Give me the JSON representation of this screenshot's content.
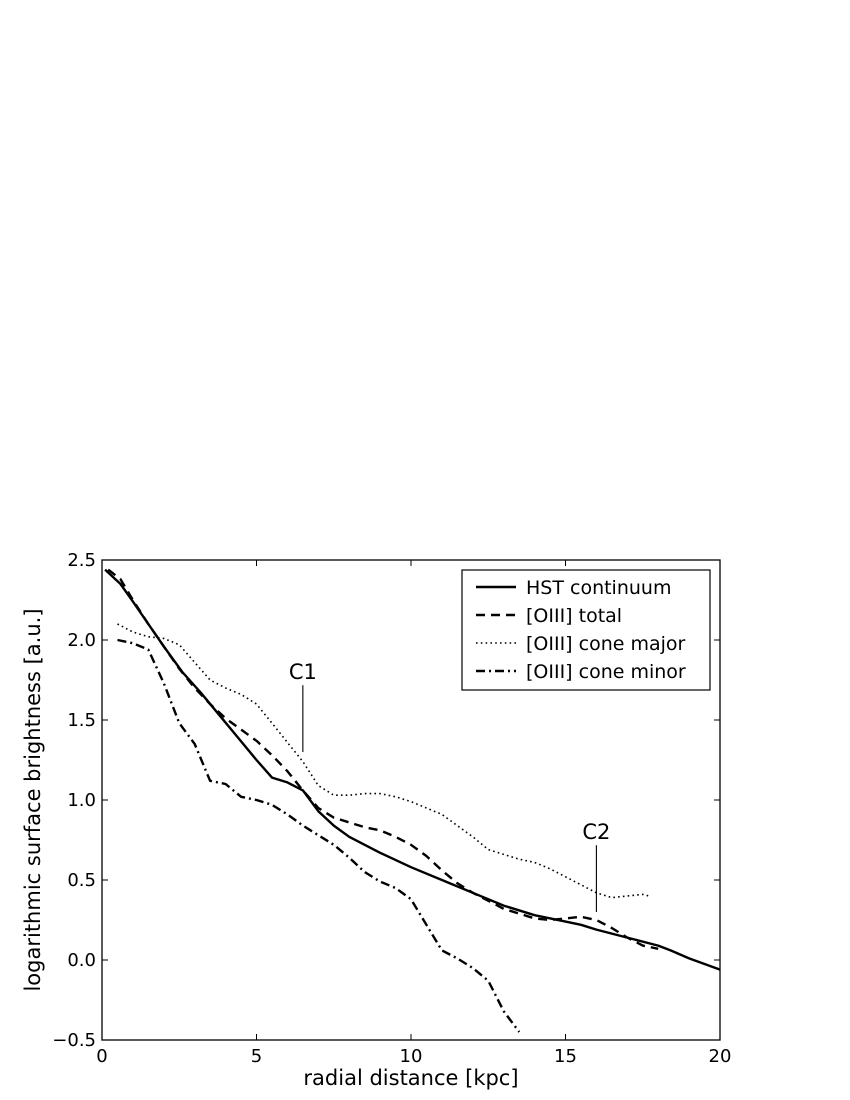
{
  "chart_data": {
    "type": "line",
    "title": "",
    "xlabel": "radial distance [kpc]",
    "ylabel": "logarithmic surface brightness [a.u.]",
    "xlim": [
      0,
      20
    ],
    "ylim": [
      -0.5,
      2.5
    ],
    "xticks": [
      0,
      5,
      10,
      15,
      20
    ],
    "xtick_labels": [
      "0",
      "5",
      "10",
      "15",
      "20"
    ],
    "yticks": [
      -0.5,
      0.0,
      0.5,
      1.0,
      1.5,
      2.0,
      2.5
    ],
    "ytick_labels": [
      "−0.5",
      "0.0",
      "0.5",
      "1.0",
      "1.5",
      "2.0",
      "2.5"
    ],
    "grid": false,
    "legend_position": "top-right",
    "series": [
      {
        "name": "HST continuum",
        "style": "solid",
        "x": [
          0.1,
          0.6,
          1.0,
          1.5,
          2.0,
          2.6,
          3.2,
          3.8,
          4.4,
          5.0,
          5.5,
          6.0,
          6.5,
          7.0,
          7.5,
          8.0,
          9.0,
          10.0,
          11.0,
          12.0,
          13.0,
          14.0,
          15.0,
          15.5,
          16.0,
          17.0,
          18.0,
          18.4,
          19.0,
          20.0
        ],
        "y": [
          2.44,
          2.35,
          2.24,
          2.1,
          1.96,
          1.8,
          1.67,
          1.53,
          1.39,
          1.25,
          1.14,
          1.11,
          1.06,
          0.93,
          0.84,
          0.77,
          0.67,
          0.58,
          0.5,
          0.42,
          0.34,
          0.28,
          0.24,
          0.22,
          0.19,
          0.14,
          0.09,
          0.06,
          0.01,
          -0.06
        ]
      },
      {
        "name": "[OIII] total",
        "style": "dashed",
        "x": [
          0.2,
          0.6,
          1.0,
          1.5,
          2.0,
          2.5,
          3.0,
          3.5,
          4.0,
          4.5,
          5.0,
          5.5,
          6.0,
          6.5,
          7.0,
          7.5,
          8.0,
          8.5,
          9.0,
          9.5,
          10.0,
          10.5,
          11.0,
          11.5,
          12.0,
          12.5,
          13.0,
          13.5,
          14.0,
          14.5,
          15.0,
          15.5,
          16.0,
          16.5,
          17.0,
          17.5,
          18.0
        ],
        "y": [
          2.44,
          2.38,
          2.25,
          2.1,
          1.96,
          1.82,
          1.7,
          1.6,
          1.51,
          1.44,
          1.37,
          1.28,
          1.18,
          1.06,
          0.95,
          0.89,
          0.86,
          0.83,
          0.81,
          0.77,
          0.72,
          0.65,
          0.56,
          0.48,
          0.42,
          0.37,
          0.32,
          0.29,
          0.26,
          0.25,
          0.26,
          0.27,
          0.25,
          0.2,
          0.14,
          0.09,
          0.07
        ]
      },
      {
        "name": "[OIII] cone major",
        "style": "dotted",
        "x": [
          0.5,
          1.0,
          1.5,
          2.0,
          2.5,
          3.0,
          3.5,
          4.0,
          4.5,
          5.0,
          5.5,
          6.0,
          6.5,
          7.0,
          7.5,
          8.0,
          8.5,
          9.0,
          9.5,
          10.0,
          10.5,
          11.0,
          11.5,
          12.0,
          12.5,
          13.0,
          13.5,
          14.0,
          14.5,
          15.0,
          15.5,
          16.0,
          16.5,
          17.0,
          17.5,
          17.7
        ],
        "y": [
          2.1,
          2.05,
          2.02,
          2.01,
          1.97,
          1.86,
          1.75,
          1.7,
          1.66,
          1.6,
          1.48,
          1.36,
          1.24,
          1.09,
          1.03,
          1.03,
          1.04,
          1.04,
          1.02,
          0.99,
          0.95,
          0.91,
          0.84,
          0.77,
          0.69,
          0.66,
          0.63,
          0.61,
          0.57,
          0.52,
          0.47,
          0.42,
          0.39,
          0.4,
          0.41,
          0.4
        ]
      },
      {
        "name": "[OIII] cone minor",
        "style": "dashdot",
        "x": [
          0.5,
          1.0,
          1.5,
          2.0,
          2.5,
          3.0,
          3.5,
          4.0,
          4.5,
          5.0,
          5.5,
          6.0,
          6.5,
          7.0,
          7.5,
          8.0,
          8.5,
          9.0,
          9.5,
          10.0,
          10.5,
          11.0,
          11.5,
          12.0,
          12.5,
          13.0,
          13.5
        ],
        "y": [
          2.0,
          1.98,
          1.94,
          1.73,
          1.48,
          1.35,
          1.12,
          1.1,
          1.02,
          1.0,
          0.97,
          0.91,
          0.84,
          0.78,
          0.72,
          0.64,
          0.55,
          0.49,
          0.45,
          0.38,
          0.22,
          0.06,
          0.01,
          -0.05,
          -0.13,
          -0.32,
          -0.45
        ]
      }
    ],
    "annotations": [
      {
        "text": "C1",
        "x": 6.5,
        "y": 1.78,
        "line_to_y": 1.3
      },
      {
        "text": "C2",
        "x": 16.0,
        "y": 0.78,
        "line_to_y": 0.3
      }
    ]
  }
}
